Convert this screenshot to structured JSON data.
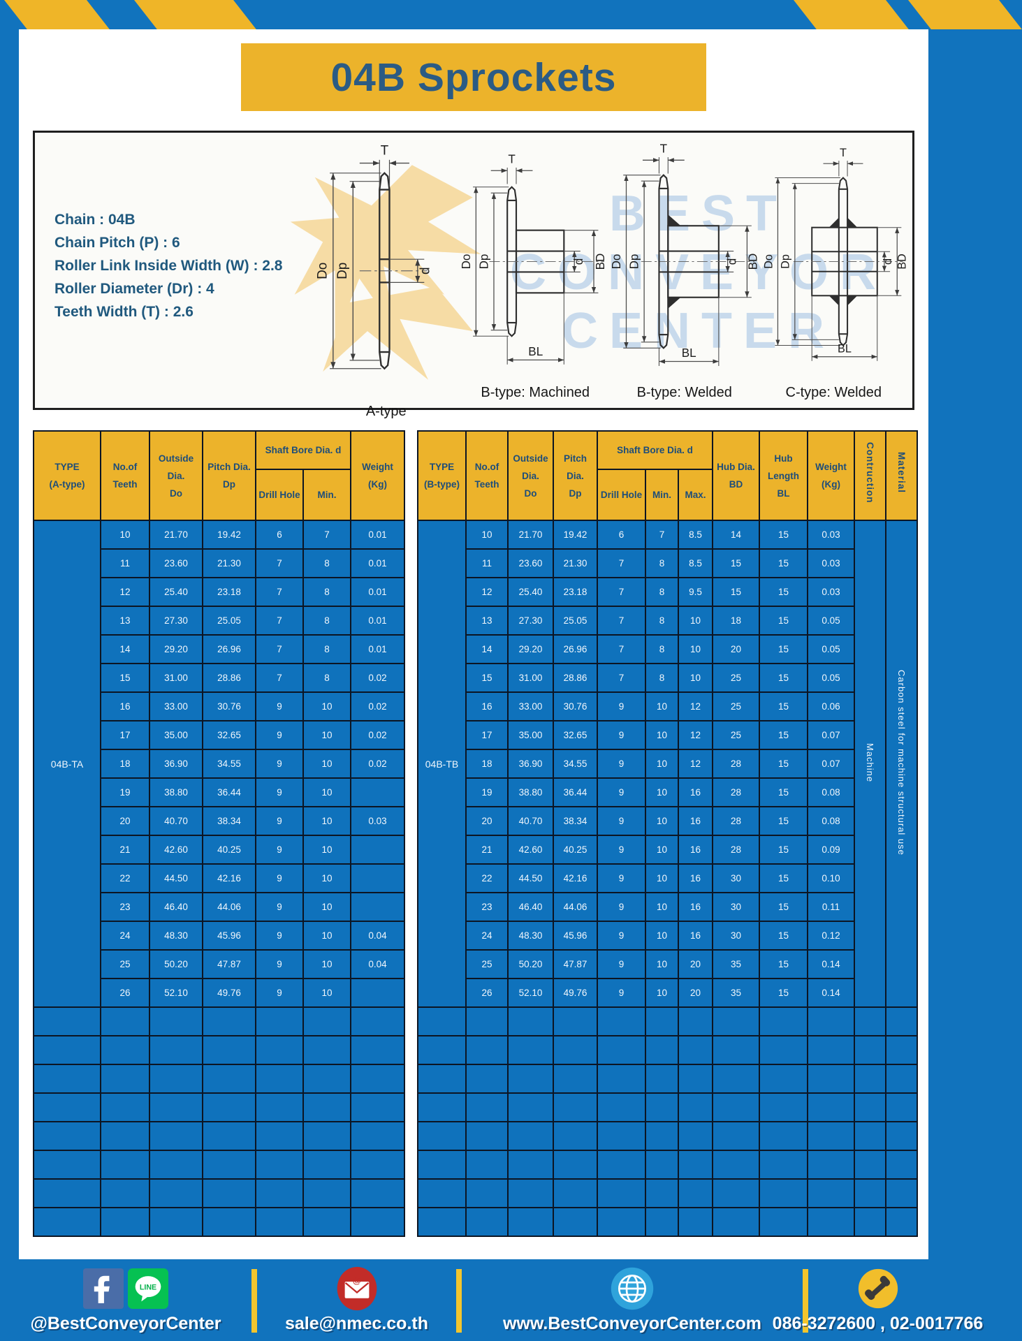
{
  "page": {
    "title": "04B Sprockets"
  },
  "colors": {
    "page_blue": "#1173BD",
    "accent_yellow": "#ECB32B",
    "cell_blue": "#0F72BC",
    "table_border": "#0C1523",
    "heading_text": "#2B5B84"
  },
  "specs": [
    "Chain : 04B",
    "Chain Pitch (P) : 6",
    "Roller Link Inside Width (W) : 2.8",
    "Roller Diameter (Dr) : 4",
    "Teeth Width (T) : 2.6"
  ],
  "diagrams": {
    "dims": {
      "t": "T",
      "do": "Do",
      "dp": "Dp",
      "d": "d",
      "bd": "BD",
      "bl": "BL"
    },
    "labels": {
      "a": "A-type",
      "b_machined": "B-type: Machined",
      "b_welded": "B-type: Welded",
      "c_welded": "C-type: Welded"
    },
    "watermark_lines": [
      "BEST",
      "CONVEYOR",
      "CENTER"
    ]
  },
  "table_a": {
    "type_label": "04B-TA",
    "columns_total": 7,
    "headers": {
      "type": "TYPE\n(A-type)",
      "teeth": "No.of\nTeeth",
      "outside": "Outside\nDia.\nDo",
      "pitch": "Pitch Dia.\nDp",
      "shaft_bore": "Shaft Bore Dia. d",
      "drill": "Drill Hole",
      "min": "Min.",
      "weight": "Weight\n(Kg)"
    },
    "rows": [
      [
        "10",
        "21.70",
        "19.42",
        "6",
        "7",
        "0.01"
      ],
      [
        "11",
        "23.60",
        "21.30",
        "7",
        "8",
        "0.01"
      ],
      [
        "12",
        "25.40",
        "23.18",
        "7",
        "8",
        "0.01"
      ],
      [
        "13",
        "27.30",
        "25.05",
        "7",
        "8",
        "0.01"
      ],
      [
        "14",
        "29.20",
        "26.96",
        "7",
        "8",
        "0.01"
      ],
      [
        "15",
        "31.00",
        "28.86",
        "7",
        "8",
        "0.02"
      ],
      [
        "16",
        "33.00",
        "30.76",
        "9",
        "10",
        "0.02"
      ],
      [
        "17",
        "35.00",
        "32.65",
        "9",
        "10",
        "0.02"
      ],
      [
        "18",
        "36.90",
        "34.55",
        "9",
        "10",
        "0.02"
      ],
      [
        "19",
        "38.80",
        "36.44",
        "9",
        "10",
        ""
      ],
      [
        "20",
        "40.70",
        "38.34",
        "9",
        "10",
        "0.03"
      ],
      [
        "21",
        "42.60",
        "40.25",
        "9",
        "10",
        ""
      ],
      [
        "22",
        "44.50",
        "42.16",
        "9",
        "10",
        ""
      ],
      [
        "23",
        "46.40",
        "44.06",
        "9",
        "10",
        ""
      ],
      [
        "24",
        "48.30",
        "45.96",
        "9",
        "10",
        "0.04"
      ],
      [
        "25",
        "50.20",
        "47.87",
        "9",
        "10",
        "0.04"
      ],
      [
        "26",
        "52.10",
        "49.76",
        "9",
        "10",
        ""
      ]
    ],
    "empty_row_count": 8
  },
  "table_b": {
    "type_label": "04B-TB",
    "columns_total": 12,
    "headers": {
      "type": "TYPE\n(B-type)",
      "teeth": "No.of\nTeeth",
      "outside": "Outside\nDia.\nDo",
      "pitch": "Pitch Dia.\nDp",
      "shaft_bore": "Shaft Bore Dia. d",
      "drill": "Drill Hole",
      "min": "Min.",
      "max": "Max.",
      "hub_dia": "Hub Dia.\nBD",
      "hub_len": "Hub\nLength\nBL",
      "weight": "Weight\n(Kg)",
      "construction": "Contruction",
      "material": "Material"
    },
    "rows": [
      [
        "10",
        "21.70",
        "19.42",
        "6",
        "7",
        "8.5",
        "14",
        "15",
        "0.03"
      ],
      [
        "11",
        "23.60",
        "21.30",
        "7",
        "8",
        "8.5",
        "15",
        "15",
        "0.03"
      ],
      [
        "12",
        "25.40",
        "23.18",
        "7",
        "8",
        "9.5",
        "15",
        "15",
        "0.03"
      ],
      [
        "13",
        "27.30",
        "25.05",
        "7",
        "8",
        "10",
        "18",
        "15",
        "0.05"
      ],
      [
        "14",
        "29.20",
        "26.96",
        "7",
        "8",
        "10",
        "20",
        "15",
        "0.05"
      ],
      [
        "15",
        "31.00",
        "28.86",
        "7",
        "8",
        "10",
        "25",
        "15",
        "0.05"
      ],
      [
        "16",
        "33.00",
        "30.76",
        "9",
        "10",
        "12",
        "25",
        "15",
        "0.06"
      ],
      [
        "17",
        "35.00",
        "32.65",
        "9",
        "10",
        "12",
        "25",
        "15",
        "0.07"
      ],
      [
        "18",
        "36.90",
        "34.55",
        "9",
        "10",
        "12",
        "28",
        "15",
        "0.07"
      ],
      [
        "19",
        "38.80",
        "36.44",
        "9",
        "10",
        "16",
        "28",
        "15",
        "0.08"
      ],
      [
        "20",
        "40.70",
        "38.34",
        "9",
        "10",
        "16",
        "28",
        "15",
        "0.08"
      ],
      [
        "21",
        "42.60",
        "40.25",
        "9",
        "10",
        "16",
        "28",
        "15",
        "0.09"
      ],
      [
        "22",
        "44.50",
        "42.16",
        "9",
        "10",
        "16",
        "30",
        "15",
        "0.10"
      ],
      [
        "23",
        "46.40",
        "44.06",
        "9",
        "10",
        "16",
        "30",
        "15",
        "0.11"
      ],
      [
        "24",
        "48.30",
        "45.96",
        "9",
        "10",
        "16",
        "30",
        "15",
        "0.12"
      ],
      [
        "25",
        "50.20",
        "47.87",
        "9",
        "10",
        "20",
        "35",
        "15",
        "0.14"
      ],
      [
        "26",
        "52.10",
        "49.76",
        "9",
        "10",
        "20",
        "35",
        "15",
        "0.14"
      ]
    ],
    "vertical_cells": [
      "Machine",
      "Carbon steel for machine structural use"
    ],
    "empty_row_count": 8
  },
  "footer": {
    "social_text": "@BestConveyorCenter",
    "line_label": "LINE",
    "email": "sale@nmec.co.th",
    "website": "www.BestConveyorCenter.com",
    "phone": "086-3272600 , 02-0017766"
  }
}
